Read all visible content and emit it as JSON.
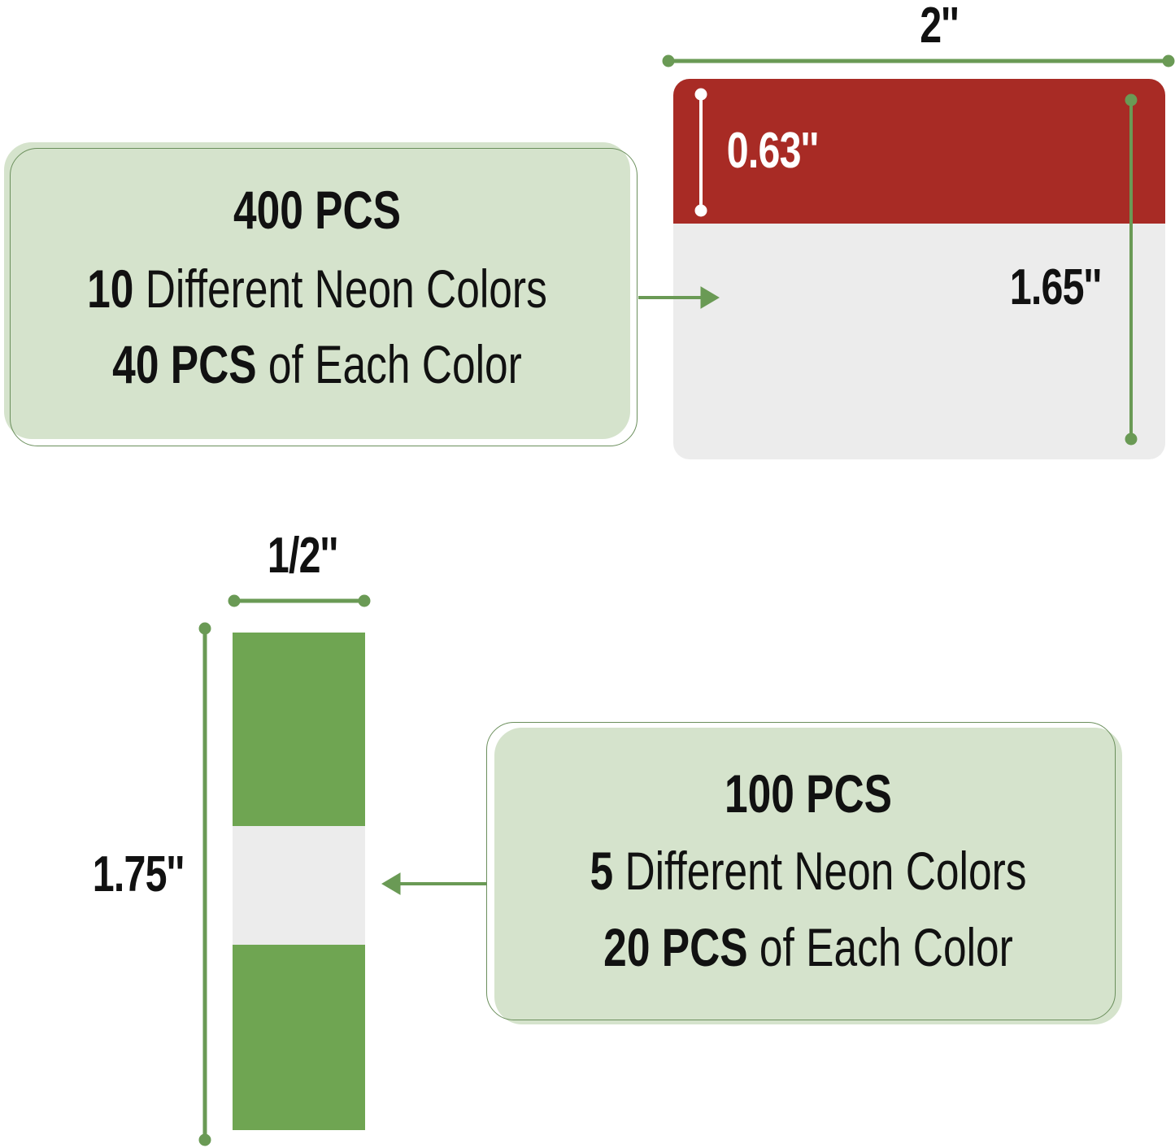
{
  "large_tab": {
    "width_label": "2''",
    "tab_height_label": "0.63''",
    "total_height_label": "1.65''",
    "tab_color": "#a82b25",
    "body_color": "#ececec",
    "info": {
      "line1": "400 PCS",
      "line2_bold": "10",
      "line2_rest": " Different Neon Colors",
      "line3_bold": "40 PCS",
      "line3_rest": " of Each Color"
    }
  },
  "small_tab": {
    "width_label": "1/2''",
    "height_label": "1.75''",
    "tab_color": "#6fa552",
    "body_color": "#ececec",
    "info": {
      "line1": "100 PCS",
      "line2_bold": "5",
      "line2_rest": " Different Neon Colors",
      "line3_bold": "20 PCS",
      "line3_rest": " of Each Color"
    }
  },
  "colors": {
    "accent": "#6a9a55",
    "box_bg": "#d5e3cc"
  }
}
